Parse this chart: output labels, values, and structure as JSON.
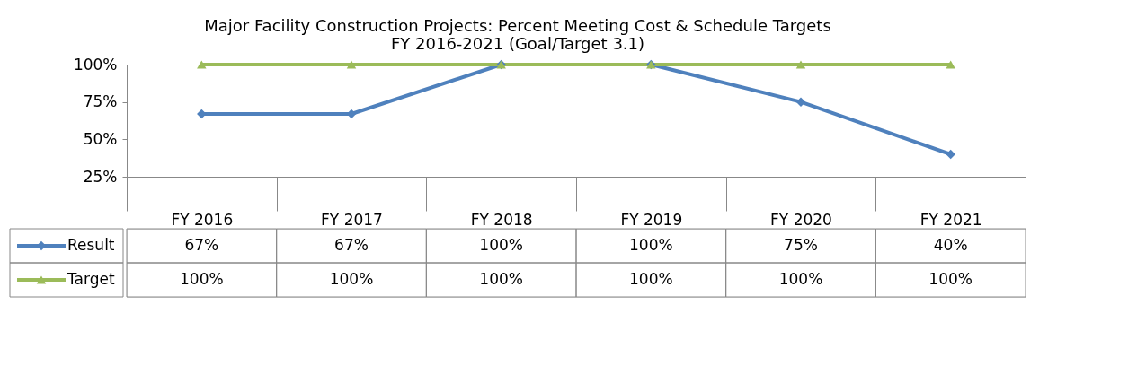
{
  "chart_data": {
    "type": "line",
    "title": "Major Facility Construction Projects: Percent Meeting Cost & Schedule Targets",
    "subtitle": "FY 2016-2021 (Goal/Target 3.1)",
    "categories": [
      "FY 2016",
      "FY 2017",
      "FY 2018",
      "FY 2019",
      "FY 2020",
      "FY 2021"
    ],
    "series": [
      {
        "name": "Result",
        "color": "#4f81bd",
        "marker": "diamond",
        "values": [
          67,
          67,
          100,
          100,
          75,
          40
        ],
        "value_labels": [
          "67%",
          "67%",
          "100%",
          "100%",
          "75%",
          "40%"
        ]
      },
      {
        "name": "Target",
        "color": "#9bbb59",
        "marker": "triangle",
        "values": [
          100,
          100,
          100,
          100,
          100,
          100
        ],
        "value_labels": [
          "100%",
          "100%",
          "100%",
          "100%",
          "100%",
          "100%"
        ]
      }
    ],
    "ylim": [
      25,
      100
    ],
    "yticks": [
      {
        "value": 25,
        "label": "25%"
      },
      {
        "value": 50,
        "label": "50%"
      },
      {
        "value": 75,
        "label": "75%"
      },
      {
        "value": 100,
        "label": "100%"
      }
    ],
    "legend": "bottom",
    "line_style": "solid"
  }
}
